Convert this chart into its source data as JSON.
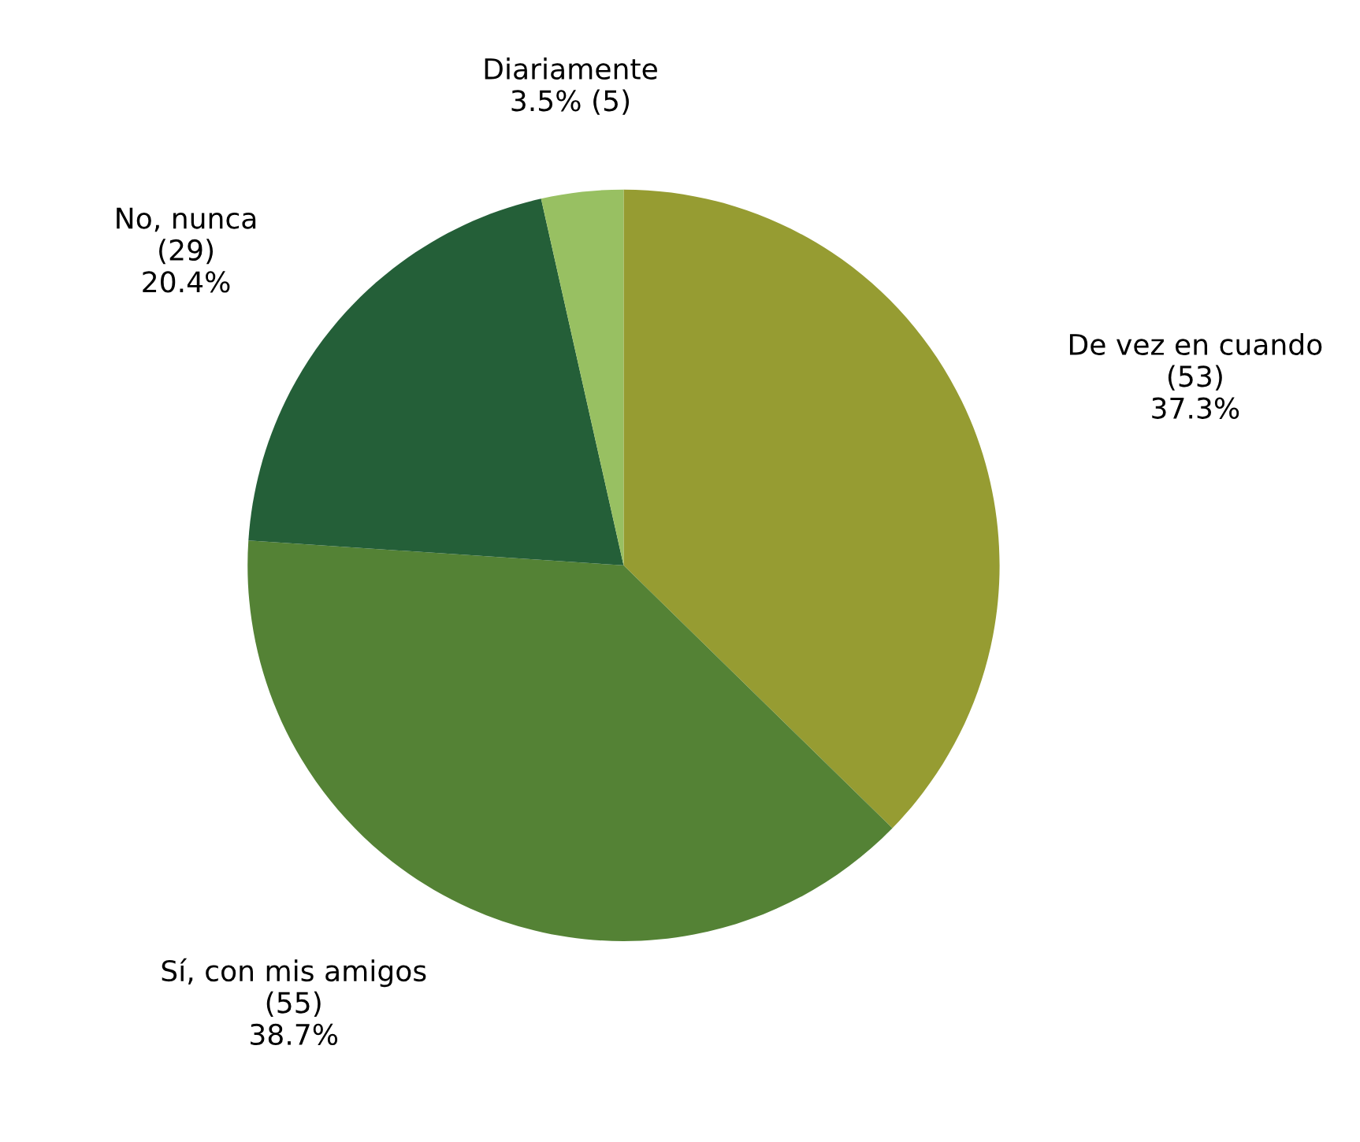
{
  "chart_data": {
    "type": "pie",
    "categories": [
      "De vez en cuando",
      "Sí, con mis amigos",
      "No, nunca",
      "Diariamente"
    ],
    "values": [
      53,
      55,
      29,
      5
    ],
    "colors": [
      "#969c32",
      "#548235",
      "#245f38",
      "#98c062"
    ],
    "value_labels": [
      "(53)\n37.3%",
      "(55)\n38.7%",
      "(29)\n20.4%",
      "3.5% (5)"
    ]
  }
}
